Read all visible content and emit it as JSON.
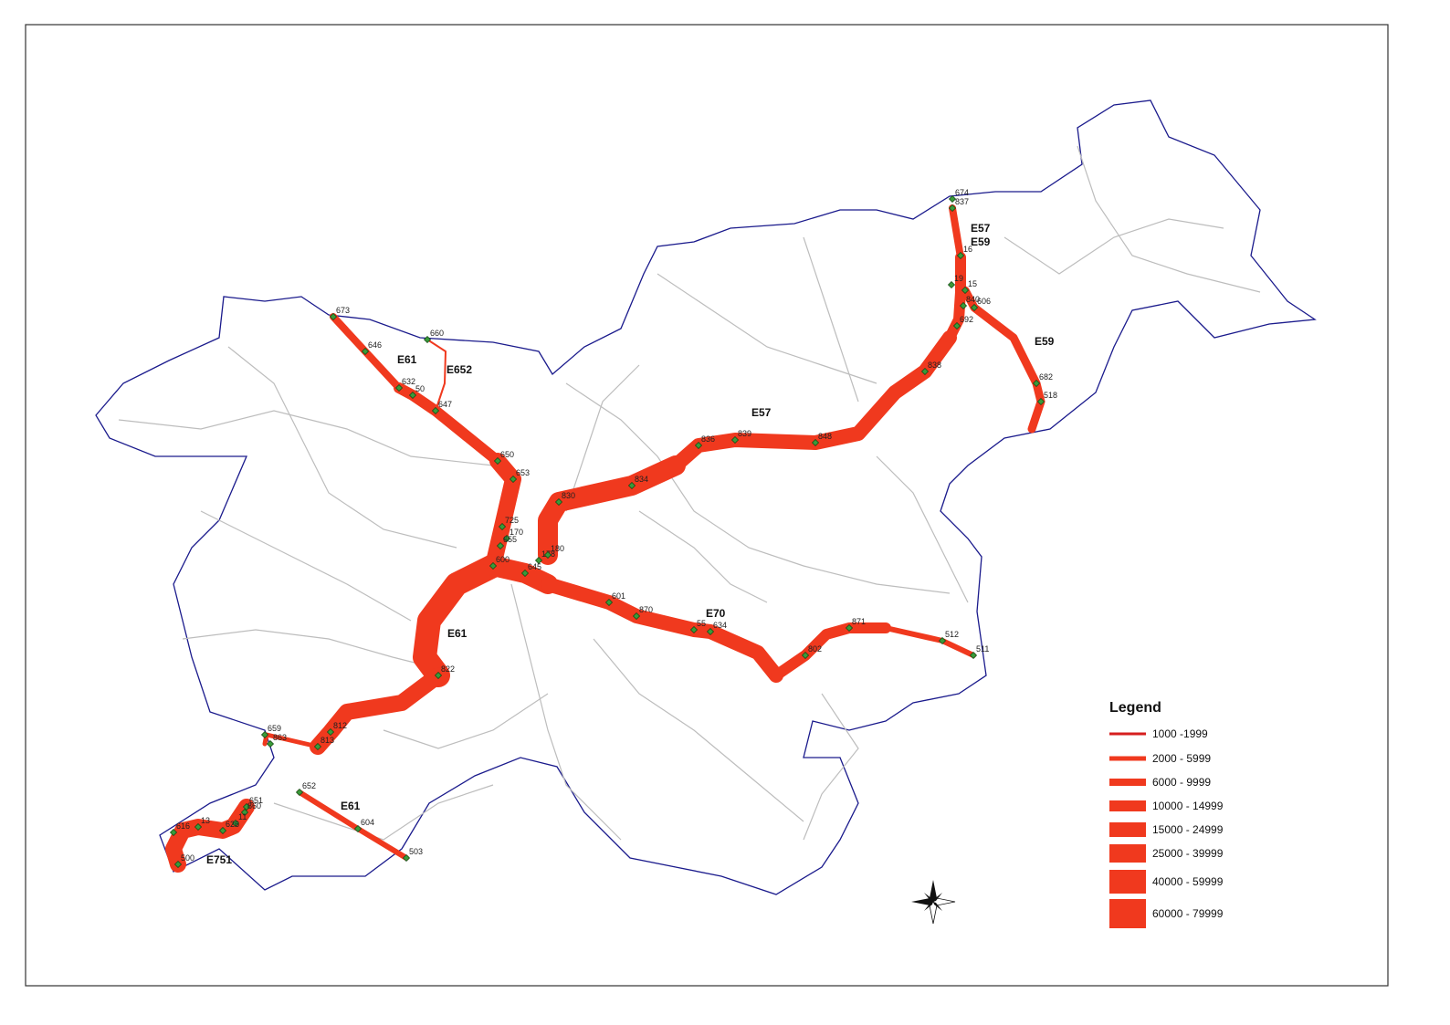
{
  "legend": {
    "title": "Legend",
    "items": [
      "1000 -1999",
      "2000 - 5999",
      "6000 - 9999",
      "10000 - 14999",
      "15000 - 24999",
      "25000 - 39999",
      "40000 - 59999",
      "60000 - 79999"
    ]
  },
  "routes": [
    "E61",
    "E652",
    "E57",
    "E59",
    "E59",
    "E57",
    "E70",
    "E61",
    "E61",
    "E751"
  ],
  "stations": [
    "673",
    "646",
    "660",
    "632",
    "50",
    "647",
    "650",
    "653",
    "725",
    "170",
    "655",
    "600",
    "178",
    "180",
    "645",
    "830",
    "834",
    "836",
    "839",
    "848",
    "838",
    "692",
    "840",
    "606",
    "15",
    "19",
    "16",
    "837",
    "674",
    "682",
    "518",
    "601",
    "870",
    "55",
    "634",
    "802",
    "871",
    "512",
    "511",
    "822",
    "812",
    "813",
    "659",
    "863",
    "652",
    "604",
    "503",
    "651",
    "860",
    "11",
    "626",
    "13",
    "616",
    "500"
  ]
}
